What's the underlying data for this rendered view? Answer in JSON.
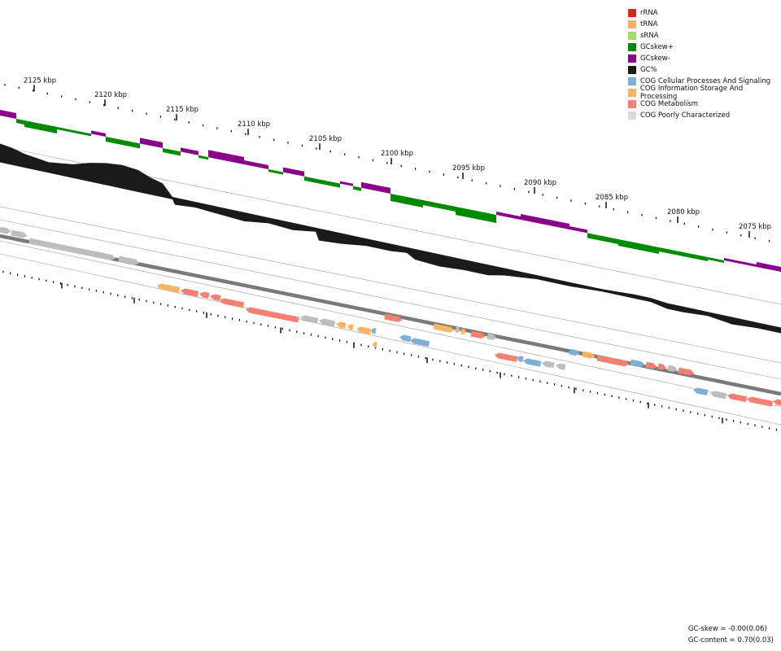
{
  "legend": [
    {
      "label": "rRNA",
      "color": "#d62728"
    },
    {
      "label": "tRNA",
      "color": "#fdae61"
    },
    {
      "label": "sRNA",
      "color": "#a6d96a"
    },
    {
      "label": "GCskew+",
      "color": "#008a00"
    },
    {
      "label": "GCskew-",
      "color": "#8b008b"
    },
    {
      "label": "GC%",
      "color": "#1a1a1a"
    },
    {
      "label": "COG Cellular Processes And Signaling",
      "color": "#7fb0d3"
    },
    {
      "label": "COG Information Storage And Processing",
      "color": "#fdb462"
    },
    {
      "label": "COG Metabolism",
      "color": "#f88070"
    },
    {
      "label": "COG Poorly Characterized",
      "color": "#d9d9d9"
    }
  ],
  "scale_labels": [
    "2125 kbp",
    "2120 kbp",
    "2115 kbp",
    "2110 kbp",
    "2105 kbp",
    "2100 kbp",
    "2095 kbp",
    "2090 kbp",
    "2085 kbp",
    "2080 kbp",
    "2075 kbp"
  ],
  "stats": {
    "gc_skew": "GC-skew = -0.00(0.06)",
    "gc_content": "GC-content = 0.70(0.03)"
  },
  "colors": {
    "backbone": "#7a7a7a",
    "guide": "#9a9a9a",
    "tick": "#111111"
  }
}
